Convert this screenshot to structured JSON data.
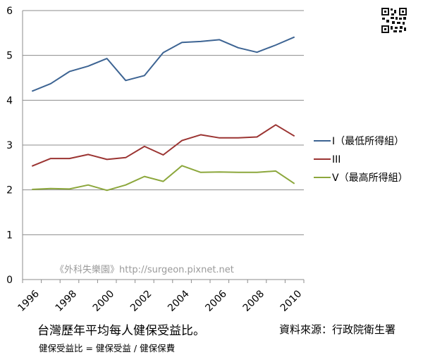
{
  "chart_data": {
    "type": "line",
    "title": "台灣歷年平均每人健保受益比。",
    "subtitle": "健保受益比 = 健保受益 / 健保保費",
    "source": "資料來源：行政院衛生署",
    "watermark": "《外科失樂園》http://surgeon.pixnet.net",
    "xlabel": "",
    "ylabel": "",
    "x": [
      1996,
      1997,
      1998,
      1999,
      2000,
      2001,
      2002,
      2003,
      2004,
      2005,
      2006,
      2007,
      2008,
      2009,
      2010
    ],
    "xticks": [
      "1996",
      "1998",
      "2000",
      "2002",
      "2004",
      "2006",
      "2008",
      "2010"
    ],
    "yticks": [
      "0",
      "1",
      "2",
      "3",
      "4",
      "5",
      "6"
    ],
    "ylim": [
      0,
      6
    ],
    "grid": "horizontal",
    "legend_position": "right",
    "series": [
      {
        "name": "I（最低所得組）",
        "color": "#3d6493",
        "values": [
          4.2,
          4.37,
          4.64,
          4.76,
          4.93,
          4.44,
          4.55,
          5.06,
          5.29,
          5.31,
          5.35,
          5.17,
          5.07,
          5.23,
          5.41
        ]
      },
      {
        "name": "III",
        "color": "#9b3432",
        "values": [
          2.53,
          2.7,
          2.7,
          2.79,
          2.68,
          2.72,
          2.97,
          2.78,
          3.1,
          3.23,
          3.16,
          3.16,
          3.18,
          3.45,
          3.2
        ]
      },
      {
        "name": "V（最高所得組）",
        "color": "#8ca73c",
        "values": [
          2.01,
          2.03,
          2.02,
          2.11,
          1.99,
          2.11,
          2.3,
          2.19,
          2.54,
          2.39,
          2.4,
          2.39,
          2.39,
          2.42,
          2.14
        ]
      }
    ]
  }
}
